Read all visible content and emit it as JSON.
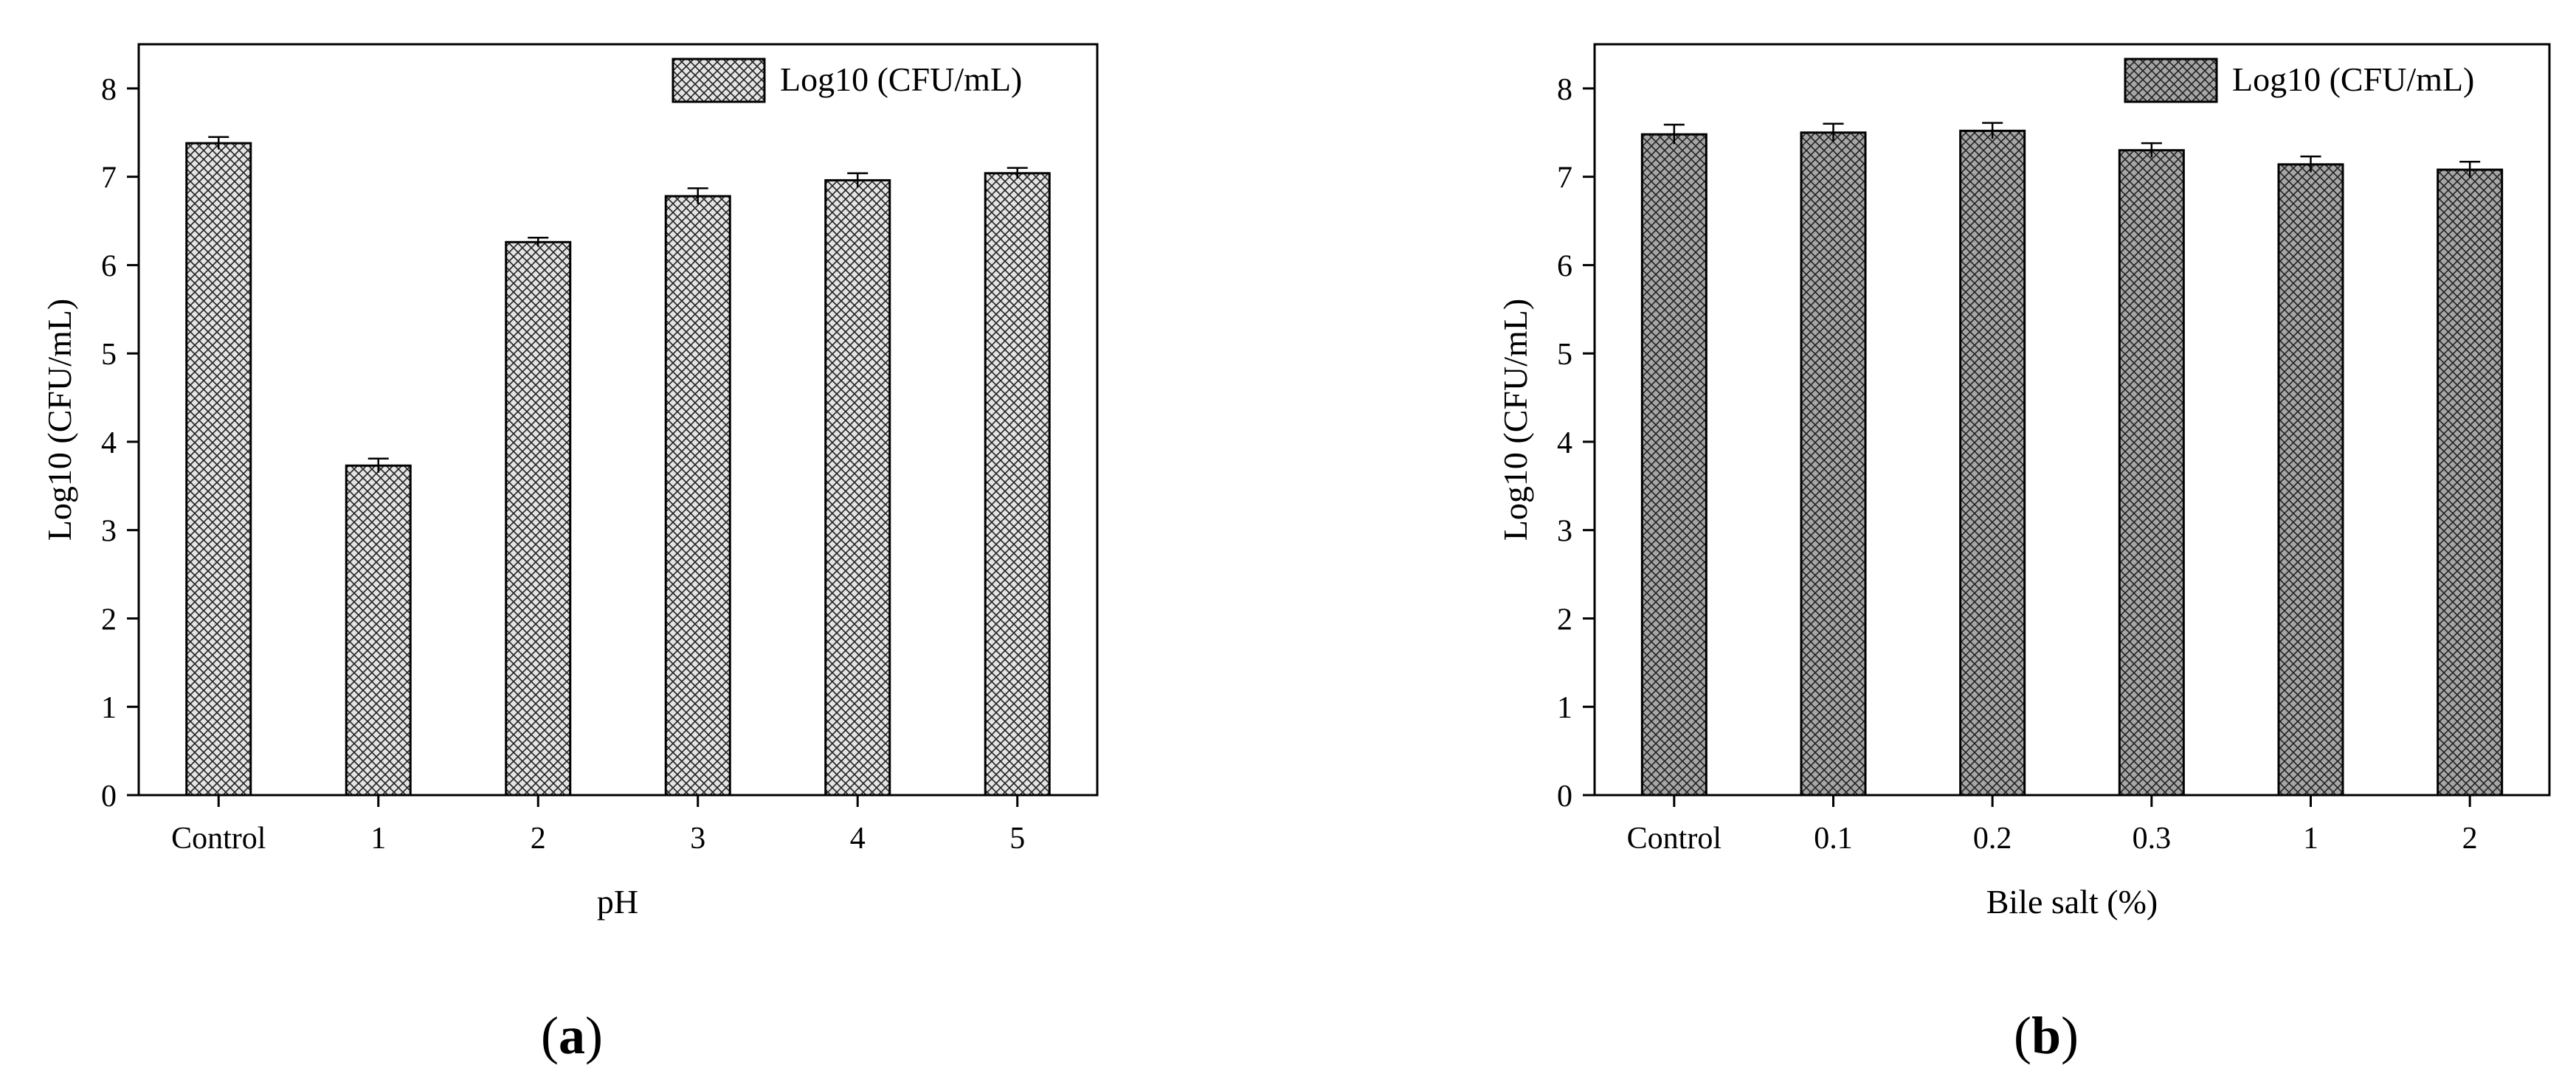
{
  "chart_data": [
    {
      "type": "bar",
      "panel_label": "a",
      "xlabel": "pH",
      "ylabel": "Log10 (CFU/mL)",
      "categories": [
        "Control",
        "1",
        "2",
        "3",
        "4",
        "5"
      ],
      "series": [
        {
          "name": "Log10 (CFU/mL)",
          "values": [
            7.38,
            3.73,
            6.26,
            6.78,
            6.96,
            7.04
          ],
          "errors": [
            0.07,
            0.08,
            0.05,
            0.09,
            0.08,
            0.06
          ]
        }
      ],
      "ylim": [
        0,
        8.5
      ],
      "yticks": [
        0,
        1,
        2,
        3,
        4,
        5,
        6,
        7,
        8
      ],
      "legend_position": "top-right",
      "grid": false,
      "bar_color": "#e4e4e4"
    },
    {
      "type": "bar",
      "panel_label": "b",
      "xlabel": "Bile salt (%)",
      "ylabel": "Log10 (CFU/mL)",
      "categories": [
        "Control",
        "0.1",
        "0.2",
        "0.3",
        "1",
        "2"
      ],
      "series": [
        {
          "name": "Log10 (CFU/mL)",
          "values": [
            7.48,
            7.5,
            7.52,
            7.3,
            7.14,
            7.08
          ],
          "errors": [
            0.11,
            0.1,
            0.09,
            0.08,
            0.09,
            0.09
          ]
        }
      ],
      "ylim": [
        0,
        8.5
      ],
      "yticks": [
        0,
        1,
        2,
        3,
        4,
        5,
        6,
        7,
        8
      ],
      "legend_position": "top-right",
      "grid": false,
      "bar_color": "#a6a6a6"
    }
  ]
}
